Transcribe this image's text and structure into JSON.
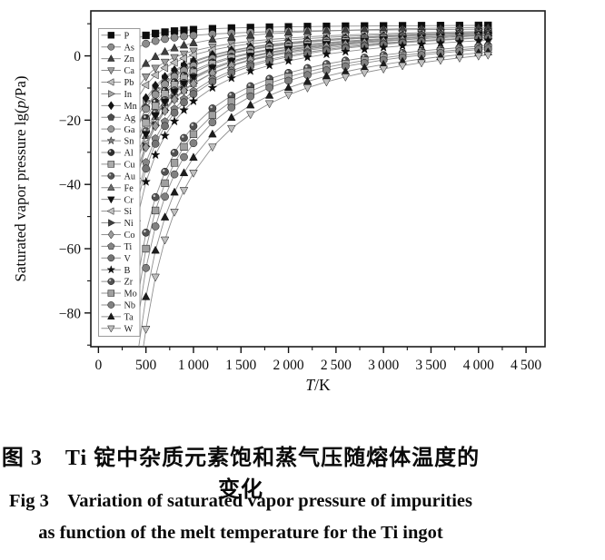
{
  "figure": {
    "caption_cn": "图 3　Ti 锭中杂质元素饱和蒸气压随熔体温度的变化",
    "caption_en_line1": "Fig 3　Variation of saturated vapor pressure of impurities",
    "caption_en_line2": "as function of the melt temperature for the Ti ingot"
  },
  "chart_data": {
    "type": "line",
    "title": "",
    "xlabel_italic": "T",
    "xlabel_rest": "/K",
    "ylabel_prefix": "Saturated vapor pressure lg(",
    "ylabel_italic": "p",
    "ylabel_suffix": "/Pa)",
    "xlim": [
      -80,
      4700
    ],
    "ylim": [
      -90.5,
      14
    ],
    "x_major_ticks": [
      0,
      500,
      1000,
      1500,
      2000,
      2500,
      3000,
      3500,
      4000,
      4500
    ],
    "x_tick_labels": [
      "0",
      "500",
      "1 000",
      "1 500",
      "2 000",
      "2 500",
      "3 000",
      "3 500",
      "4 000",
      "4 500"
    ],
    "x_minor_step": 250,
    "y_major_ticks": [
      0,
      -20,
      -40,
      -60,
      -80
    ],
    "y_tick_labels": [
      "0",
      "−20",
      "−40",
      "−60",
      "−80"
    ],
    "y_minor_step": 10,
    "grid": false,
    "legend_position": "inside-left",
    "line_color": "#8f8f8f",
    "frame_color": "#1c1c1c",
    "model": "lg(p/Pa) = A - B/T (curves clipped at plot bottom; markers at each temperature)",
    "temperatures_K": [
      400,
      500,
      600,
      700,
      800,
      900,
      1000,
      1200,
      1400,
      1600,
      1800,
      2000,
      2200,
      2400,
      2600,
      2800,
      3000,
      3200,
      3400,
      3600,
      3800,
      4000,
      4100
    ],
    "series": [
      {
        "name": "P",
        "marker": "square",
        "color": "#0d0d0d",
        "A": 9.93,
        "B": 1773,
        "lg_p_at_500K": 6.38,
        "lg_p_at_4100K": 9.5
      },
      {
        "name": "As",
        "marker": "circle",
        "color": "#8c8c8c",
        "A": 8.93,
        "B": 2571,
        "lg_p_at_500K": 3.79,
        "lg_p_at_4100K": 8.3
      },
      {
        "name": "Zn",
        "marker": "triangle-up",
        "color": "#3f3f3f",
        "A": 10.44,
        "B": 6424,
        "lg_p_at_500K": -2.41,
        "lg_p_at_4100K": 8.87
      },
      {
        "name": "Ca",
        "marker": "triangle-down",
        "color": "#9e9e9e",
        "A": 9.58,
        "B": 8043,
        "lg_p_at_500K": -6.51,
        "lg_p_at_4100K": 7.62
      },
      {
        "name": "Pb",
        "marker": "triangle-left",
        "color": "#bdbdbd",
        "A": 9.62,
        "B": 9349,
        "lg_p_at_500K": -9.08,
        "lg_p_at_4100K": 7.34
      },
      {
        "name": "In",
        "marker": "triangle-right",
        "color": "#a3a3a3",
        "A": 10.14,
        "B": 12064,
        "lg_p_at_500K": -13.99,
        "lg_p_at_4100K": 7.2
      },
      {
        "name": "Mn",
        "marker": "diamond",
        "color": "#141414",
        "A": 9.95,
        "B": 11543,
        "lg_p_at_500K": -13.14,
        "lg_p_at_4100K": 7.13
      },
      {
        "name": "Ag",
        "marker": "pentagon",
        "color": "#4d4d4d",
        "A": 10.45,
        "B": 13266,
        "lg_p_at_500K": -16.08,
        "lg_p_at_4100K": 7.21
      },
      {
        "name": "Ga",
        "marker": "circle",
        "color": "#969696",
        "A": 10.3,
        "B": 13400,
        "lg_p_at_500K": -16.5,
        "lg_p_at_4100K": 7.03
      },
      {
        "name": "Sn",
        "marker": "star",
        "color": "#7a7a7a",
        "A": 10.38,
        "B": 15460,
        "lg_p_at_500K": -20.54,
        "lg_p_at_4100K": 6.61
      },
      {
        "name": "Al",
        "marker": "sphere",
        "color": "#2e2e2e",
        "A": 10.31,
        "B": 14833,
        "lg_p_at_500K": -19.36,
        "lg_p_at_4100K": 6.69
      },
      {
        "name": "Cu",
        "marker": "square",
        "color": "#ababab",
        "A": 10.53,
        "B": 15668,
        "lg_p_at_500K": -20.81,
        "lg_p_at_4100K": 6.71
      },
      {
        "name": "Au",
        "marker": "sphere",
        "color": "#565656",
        "A": 10.41,
        "B": 16922,
        "lg_p_at_500K": -23.43,
        "lg_p_at_4100K": 6.28
      },
      {
        "name": "Fe",
        "marker": "triangle-up",
        "color": "#6b6b6b",
        "A": 10.67,
        "B": 17757,
        "lg_p_at_500K": -24.84,
        "lg_p_at_4100K": 6.34
      },
      {
        "name": "Cr",
        "marker": "triangle-down",
        "color": "#101010",
        "A": 11.01,
        "B": 17705,
        "lg_p_at_500K": -24.4,
        "lg_p_at_4100K": 6.69
      },
      {
        "name": "Si",
        "marker": "triangle-left",
        "color": "#c2c2c2",
        "A": 10.3,
        "B": 18749,
        "lg_p_at_500K": -27.2,
        "lg_p_at_4100K": 5.73
      },
      {
        "name": "Ni",
        "marker": "triangle-right",
        "color": "#404040",
        "A": 11.18,
        "B": 19690,
        "lg_p_at_500K": -28.2,
        "lg_p_at_4100K": 6.38
      },
      {
        "name": "Co",
        "marker": "diamond",
        "color": "#9b9b9b",
        "A": 11.15,
        "B": 19800,
        "lg_p_at_500K": -28.45,
        "lg_p_at_4100K": 6.32
      },
      {
        "name": "Ti",
        "marker": "pentagon",
        "color": "#858585",
        "A": 11.24,
        "B": 22197,
        "lg_p_at_500K": -33.15,
        "lg_p_at_4100K": 5.83
      },
      {
        "name": "V",
        "marker": "circle",
        "color": "#747474",
        "A": 11.3,
        "B": 23189,
        "lg_p_at_500K": -35.08,
        "lg_p_at_4100K": 5.64
      },
      {
        "name": "B",
        "marker": "star",
        "color": "#0f0f0f",
        "A": 10.97,
        "B": 25069,
        "lg_p_at_500K": -39.17,
        "lg_p_at_4100K": 4.86
      },
      {
        "name": "Zr",
        "marker": "sphere",
        "color": "#525252",
        "A": 11.28,
        "B": 33142,
        "lg_p_at_500K": -55.0,
        "lg_p_at_4100K": 3.2
      },
      {
        "name": "Mo",
        "marker": "square",
        "color": "#a0a0a0",
        "A": 11.29,
        "B": 35646,
        "lg_p_at_500K": -60.0,
        "lg_p_at_4100K": 2.6
      },
      {
        "name": "Nb",
        "marker": "circle",
        "color": "#818181",
        "A": 11.67,
        "B": 38836,
        "lg_p_at_500K": -66.0,
        "lg_p_at_4100K": 2.2
      },
      {
        "name": "Ta",
        "marker": "triangle-up",
        "color": "#1c1c1c",
        "A": 11.78,
        "B": 43392,
        "lg_p_at_500K": -75.0,
        "lg_p_at_4100K": 1.2
      },
      {
        "name": "W",
        "marker": "triangle-down",
        "color": "#bfbfbf",
        "A": 12.15,
        "B": 48574,
        "lg_p_at_500K": -85.0,
        "lg_p_at_4100K": 0.3
      }
    ]
  }
}
